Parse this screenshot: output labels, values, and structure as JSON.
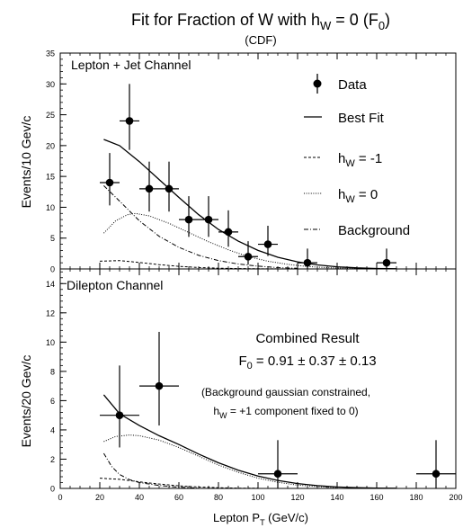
{
  "figure": {
    "title": "Fit for Fraction of W with h",
    "title_sub": "W",
    "title_tail_main": " = 0 (F",
    "title_tail_sub": "0",
    "title_close": ")",
    "subtitle": "(CDF)",
    "xlabel_main": "Lepton P",
    "xlabel_sub": "T",
    "xlabel_tail": " (GeV/c)"
  },
  "chart_data": [
    {
      "type": "scatter",
      "panel": "top",
      "label": "Lepton + Jet Channel",
      "ylabel": "Events/10 Gev/c",
      "xlim": [
        0,
        200
      ],
      "ylim": [
        0,
        35
      ],
      "xticks": [
        0,
        20,
        40,
        60,
        80,
        100,
        120,
        140,
        160,
        180,
        200
      ],
      "yticks": [
        0,
        5,
        10,
        15,
        20,
        25,
        30,
        35
      ],
      "legend": [
        {
          "label": "Data",
          "style": "marker"
        },
        {
          "label": "Best Fit",
          "style": "solid"
        },
        {
          "label": "h_W = -1",
          "main": "h",
          "sub": "W",
          "tail": " = -1",
          "style": "dashed"
        },
        {
          "label": "h_W = 0",
          "main": "h",
          "sub": "W",
          "tail": " = 0",
          "style": "dotted"
        },
        {
          "label": "Background",
          "style": "dashdot"
        }
      ],
      "data_points": [
        {
          "x": 25,
          "y": 14,
          "xerr": 5,
          "ylo": 10.3,
          "yhi": 18.8
        },
        {
          "x": 35,
          "y": 24,
          "xerr": 5,
          "ylo": 19.3,
          "yhi": 30
        },
        {
          "x": 45,
          "y": 13,
          "xerr": 5,
          "ylo": 9.3,
          "yhi": 17.4
        },
        {
          "x": 55,
          "y": 13,
          "xerr": 5,
          "ylo": 9.3,
          "yhi": 17.4
        },
        {
          "x": 65,
          "y": 8,
          "xerr": 5,
          "ylo": 5.2,
          "yhi": 11.8
        },
        {
          "x": 75,
          "y": 8,
          "xerr": 5,
          "ylo": 5.2,
          "yhi": 11.8
        },
        {
          "x": 85,
          "y": 6,
          "xerr": 5,
          "ylo": 3.6,
          "yhi": 9.5
        },
        {
          "x": 95,
          "y": 2,
          "xerr": 5,
          "ylo": 0.7,
          "yhi": 4.5
        },
        {
          "x": 105,
          "y": 4,
          "xerr": 5,
          "ylo": 2.1,
          "yhi": 7
        },
        {
          "x": 125,
          "y": 1,
          "xerr": 5,
          "ylo": 0,
          "yhi": 3.3
        },
        {
          "x": 165,
          "y": 1,
          "xerr": 5,
          "ylo": 0,
          "yhi": 3.3
        }
      ],
      "curves": [
        {
          "name": "Best Fit",
          "style": "solid",
          "x": [
            22,
            30,
            40,
            50,
            60,
            70,
            80,
            90,
            100,
            110,
            120,
            130,
            140,
            150,
            160,
            170
          ],
          "y": [
            21,
            20,
            17.4,
            14.5,
            11.6,
            8.8,
            6.4,
            4.5,
            3.0,
            1.9,
            1.15,
            0.65,
            0.35,
            0.18,
            0.08,
            0.03
          ]
        },
        {
          "name": "h_W = -1",
          "style": "dashed",
          "x": [
            20,
            30,
            40,
            50,
            60,
            70,
            80,
            90,
            100,
            110
          ],
          "y": [
            1.25,
            1.35,
            1.05,
            0.7,
            0.42,
            0.24,
            0.12,
            0.06,
            0.03,
            0.01
          ]
        },
        {
          "name": "h_W = 0",
          "style": "dotted",
          "x": [
            22,
            28,
            34,
            38,
            45,
            55,
            65,
            75,
            85,
            95,
            105,
            115,
            125,
            135,
            150
          ],
          "y": [
            5.8,
            7.8,
            8.8,
            9.0,
            8.6,
            7.4,
            5.9,
            4.4,
            3.1,
            2.0,
            1.25,
            0.75,
            0.4,
            0.2,
            0.08
          ]
        },
        {
          "name": "Background",
          "style": "dashdot",
          "x": [
            22,
            30,
            40,
            50,
            60,
            70,
            80,
            90,
            100,
            110,
            120
          ],
          "y": [
            13.5,
            11,
            7.8,
            5.3,
            3.5,
            2.2,
            1.35,
            0.8,
            0.45,
            0.22,
            0.1
          ]
        }
      ]
    },
    {
      "type": "scatter",
      "panel": "bottom",
      "label": "Dilepton Channel",
      "ylabel": "Events/20 Gev/c",
      "xlim": [
        0,
        200
      ],
      "ylim": [
        0,
        15
      ],
      "xticks": [
        0,
        20,
        40,
        60,
        80,
        100,
        120,
        140,
        160,
        180,
        200
      ],
      "yticks": [
        0,
        2,
        4,
        6,
        8,
        10,
        12,
        14
      ],
      "annotation": {
        "heading": "Combined Result",
        "result_main": "F",
        "result_sub": "0",
        "result_tail": " = 0.91 ± 0.37 ± 0.13",
        "note_line1": "(Background gaussian constrained,",
        "note_main": "h",
        "note_sub": "W",
        "note_tail": " = +1 component fixed to 0)"
      },
      "data_points": [
        {
          "x": 30,
          "y": 5,
          "xerr": 10,
          "ylo": 2.8,
          "yhi": 8.4
        },
        {
          "x": 50,
          "y": 7,
          "xerr": 10,
          "ylo": 4.3,
          "yhi": 10.7
        },
        {
          "x": 110,
          "y": 1,
          "xerr": 10,
          "ylo": 0,
          "yhi": 3.3
        },
        {
          "x": 190,
          "y": 1,
          "xerr": 10,
          "ylo": 0,
          "yhi": 3.3
        }
      ],
      "curves": [
        {
          "name": "Best Fit",
          "style": "solid",
          "x": [
            22,
            30,
            40,
            50,
            60,
            70,
            80,
            90,
            100,
            110,
            120,
            130,
            140,
            150,
            160,
            170
          ],
          "y": [
            6.4,
            5.1,
            4.3,
            3.6,
            3.0,
            2.35,
            1.75,
            1.25,
            0.85,
            0.55,
            0.33,
            0.19,
            0.1,
            0.05,
            0.02,
            0.01
          ]
        },
        {
          "name": "h_W = -1",
          "style": "dashed",
          "x": [
            20,
            30,
            40,
            50,
            60,
            70,
            80,
            90,
            100
          ],
          "y": [
            0.7,
            0.62,
            0.45,
            0.3,
            0.18,
            0.1,
            0.05,
            0.02,
            0.01
          ]
        },
        {
          "name": "h_W = 0",
          "style": "dotted",
          "x": [
            22,
            28,
            35,
            40,
            50,
            60,
            70,
            80,
            90,
            100,
            110,
            120,
            130,
            140
          ],
          "y": [
            3.2,
            3.55,
            3.65,
            3.6,
            3.3,
            2.8,
            2.2,
            1.6,
            1.1,
            0.7,
            0.42,
            0.23,
            0.12,
            0.05
          ]
        },
        {
          "name": "Background",
          "style": "dashdot",
          "x": [
            22,
            26,
            30,
            35,
            40,
            50,
            60,
            70
          ],
          "y": [
            2.4,
            1.5,
            0.95,
            0.6,
            0.4,
            0.2,
            0.08,
            0.02
          ]
        }
      ]
    }
  ]
}
